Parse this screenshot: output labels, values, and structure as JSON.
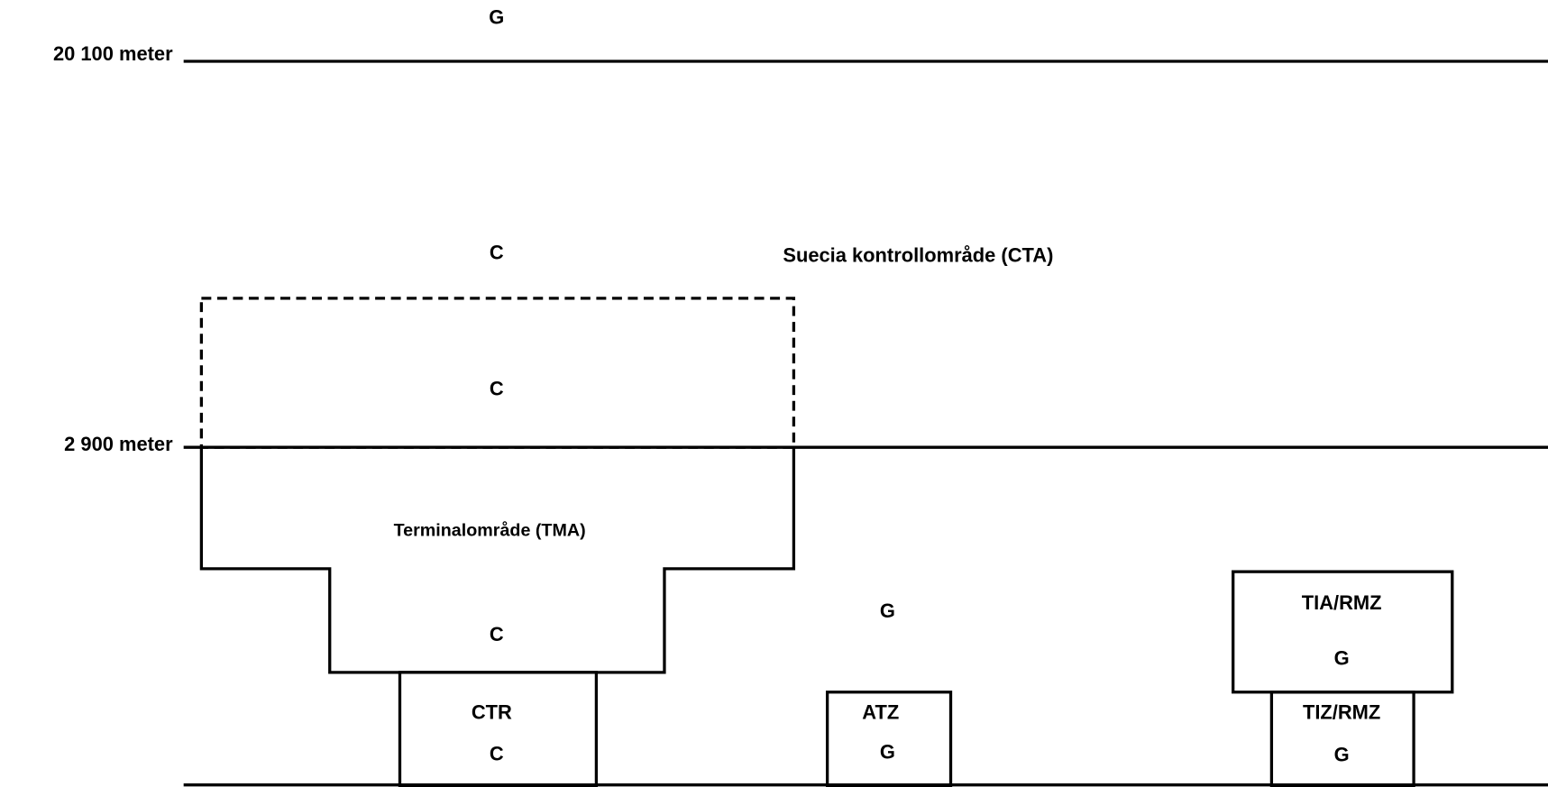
{
  "above_upper_limit": {
    "class": "G"
  },
  "altitudes": {
    "upper": "20 100 meter",
    "tma_top": "2 900 meter"
  },
  "cta": {
    "label": "Suecia kontrollområde (CTA)",
    "class": "C",
    "class_above_tma": "C"
  },
  "tma": {
    "label": "Terminalområde (TMA)",
    "class": "C"
  },
  "ctr": {
    "label": "CTR",
    "class": "C"
  },
  "uncontrolled": {
    "class": "G"
  },
  "atz": {
    "label": "ATZ",
    "class": "G"
  },
  "tia": {
    "label": "TIA/RMZ",
    "class": "G"
  },
  "tiz": {
    "label": "TIZ/RMZ",
    "class": "G"
  }
}
